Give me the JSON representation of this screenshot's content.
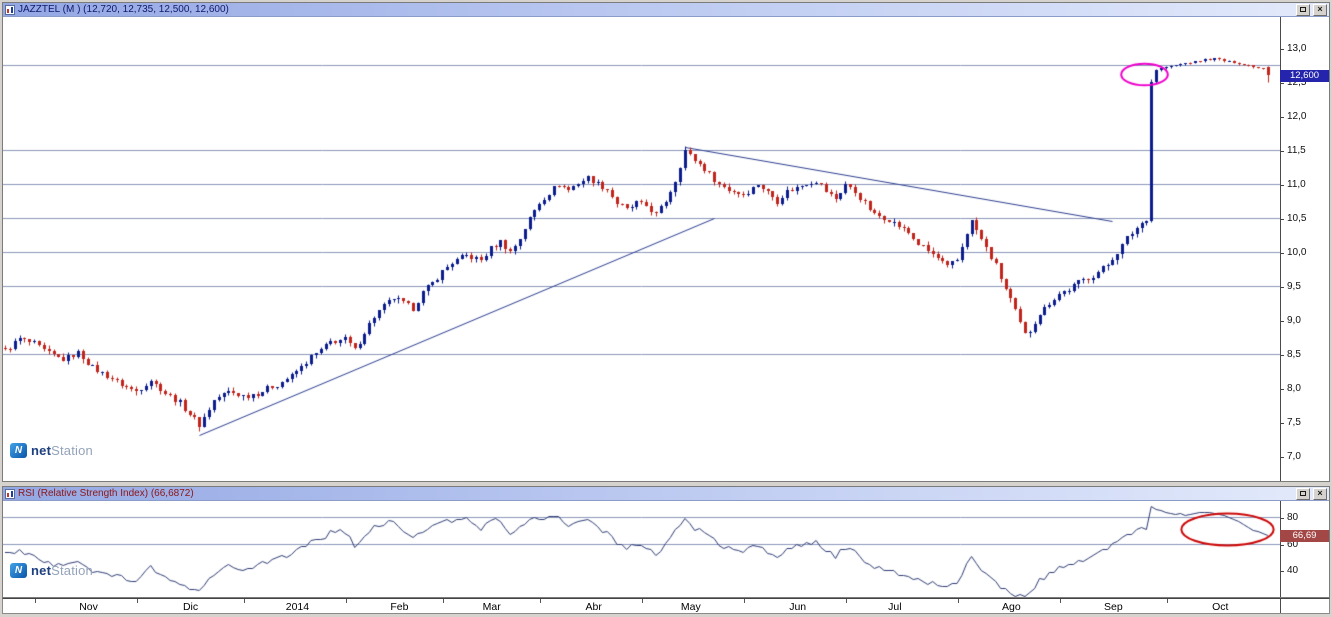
{
  "branding": {
    "icon_letter": "N",
    "net": "net",
    "station": "Station"
  },
  "window_controls": {
    "close_glyph": "×"
  },
  "price_window": {
    "title": "JAZZTEL (M ) (12,720, 12,735, 12,500, 12,600)",
    "last_price_label": "12,600",
    "axis_ticks": [
      {
        "label": "13,0",
        "value": 13.0
      },
      {
        "label": "12,5",
        "value": 12.5
      },
      {
        "label": "12,0",
        "value": 12.0
      },
      {
        "label": "11,5",
        "value": 11.5
      },
      {
        "label": "11,0",
        "value": 11.0
      },
      {
        "label": "10,5",
        "value": 10.5
      },
      {
        "label": "10,0",
        "value": 10.0
      },
      {
        "label": "9,5",
        "value": 9.5
      },
      {
        "label": "9,0",
        "value": 9.0
      },
      {
        "label": "8,5",
        "value": 8.5
      },
      {
        "label": "8,0",
        "value": 8.0
      },
      {
        "label": "7,5",
        "value": 7.5
      },
      {
        "label": "7,0",
        "value": 7.0
      }
    ]
  },
  "rsi_window": {
    "title": "RSI (Relative Strength Index) (66,6872)",
    "value_label": "66,69",
    "axis_ticks": [
      {
        "label": "80",
        "value": 80
      },
      {
        "label": "60",
        "value": 60
      },
      {
        "label": "40",
        "value": 40
      }
    ]
  },
  "time_axis": {
    "labels": [
      {
        "label": "Nov",
        "day": 17
      },
      {
        "label": "Dic",
        "day": 38
      },
      {
        "label": "2014",
        "day": 60
      },
      {
        "label": "Feb",
        "day": 81
      },
      {
        "label": "Mar",
        "day": 100
      },
      {
        "label": "Abr",
        "day": 121
      },
      {
        "label": "May",
        "day": 141
      },
      {
        "label": "Jun",
        "day": 163
      },
      {
        "label": "Jul",
        "day": 183
      },
      {
        "label": "Ago",
        "day": 207
      },
      {
        "label": "Sep",
        "day": 228
      },
      {
        "label": "Oct",
        "day": 250
      }
    ],
    "tick_days": [
      6,
      27,
      49,
      70,
      90,
      110,
      131,
      152,
      173,
      196,
      217,
      239
    ]
  },
  "chart_data": [
    {
      "type": "candlestick",
      "symbol": "JAZZTEL",
      "period_label": "M",
      "y_ticks": [
        13.0,
        12.5,
        12.0,
        11.5,
        11.0,
        10.5,
        10.0,
        9.5,
        9.0,
        8.5,
        8.0,
        7.5,
        7.0
      ],
      "y_view_range": [
        6.63,
        13.46
      ],
      "gridlines": [
        12.75,
        11.5,
        11.0,
        10.5,
        10.0,
        9.5,
        8.5
      ],
      "spike_day": 236,
      "last_candle": {
        "open": 12.72,
        "high": 12.735,
        "low": 12.5,
        "close": 12.6
      },
      "close_path": [
        [
          0,
          8.55
        ],
        [
          3,
          8.72
        ],
        [
          6,
          8.65
        ],
        [
          9,
          8.5
        ],
        [
          12,
          8.42
        ],
        [
          15,
          8.52
        ],
        [
          18,
          8.3
        ],
        [
          21,
          8.18
        ],
        [
          24,
          8.05
        ],
        [
          27,
          7.95
        ],
        [
          30,
          8.12
        ],
        [
          33,
          7.92
        ],
        [
          36,
          7.78
        ],
        [
          40,
          7.45
        ],
        [
          43,
          7.82
        ],
        [
          46,
          7.95
        ],
        [
          49,
          7.88
        ],
        [
          52,
          7.92
        ],
        [
          56,
          8.05
        ],
        [
          59,
          8.18
        ],
        [
          61,
          8.3
        ],
        [
          63,
          8.45
        ],
        [
          65,
          8.55
        ],
        [
          67,
          8.68
        ],
        [
          70,
          8.72
        ],
        [
          72,
          8.55
        ],
        [
          74,
          8.82
        ],
        [
          76,
          9.05
        ],
        [
          78,
          9.2
        ],
        [
          80,
          9.32
        ],
        [
          82,
          9.25
        ],
        [
          84,
          9.18
        ],
        [
          86,
          9.4
        ],
        [
          88,
          9.55
        ],
        [
          90,
          9.72
        ],
        [
          92,
          9.85
        ],
        [
          95,
          9.95
        ],
        [
          98,
          9.88
        ],
        [
          100,
          10.05
        ],
        [
          102,
          10.15
        ],
        [
          104,
          10.0
        ],
        [
          106,
          10.2
        ],
        [
          108,
          10.5
        ],
        [
          110,
          10.72
        ],
        [
          112,
          10.88
        ],
        [
          114,
          11.0
        ],
        [
          116,
          10.92
        ],
        [
          118,
          11.02
        ],
        [
          120,
          11.1
        ],
        [
          122,
          11.0
        ],
        [
          124,
          10.92
        ],
        [
          126,
          10.72
        ],
        [
          128,
          10.62
        ],
        [
          130,
          10.72
        ],
        [
          132,
          10.68
        ],
        [
          134,
          10.55
        ],
        [
          136,
          10.75
        ],
        [
          138,
          11.05
        ],
        [
          140,
          11.5
        ],
        [
          141,
          11.42
        ],
        [
          143,
          11.3
        ],
        [
          145,
          11.15
        ],
        [
          147,
          11.0
        ],
        [
          149,
          10.92
        ],
        [
          152,
          10.85
        ],
        [
          155,
          11.0
        ],
        [
          157,
          10.88
        ],
        [
          159,
          10.75
        ],
        [
          161,
          10.9
        ],
        [
          163,
          10.95
        ],
        [
          165,
          11.02
        ],
        [
          167,
          11.05
        ],
        [
          169,
          10.9
        ],
        [
          171,
          10.78
        ],
        [
          173,
          11.0
        ],
        [
          175,
          10.88
        ],
        [
          177,
          10.72
        ],
        [
          179,
          10.55
        ],
        [
          182,
          10.48
        ],
        [
          184,
          10.38
        ],
        [
          186,
          10.28
        ],
        [
          188,
          10.12
        ],
        [
          190,
          10.02
        ],
        [
          192,
          9.9
        ],
        [
          194,
          9.78
        ],
        [
          196,
          9.88
        ],
        [
          198,
          10.3
        ],
        [
          199,
          10.45
        ],
        [
          200,
          10.32
        ],
        [
          202,
          10.05
        ],
        [
          204,
          9.8
        ],
        [
          205,
          9.62
        ],
        [
          207,
          9.3
        ],
        [
          209,
          8.95
        ],
        [
          210,
          8.78
        ],
        [
          211,
          8.85
        ],
        [
          213,
          9.1
        ],
        [
          215,
          9.25
        ],
        [
          217,
          9.38
        ],
        [
          219,
          9.45
        ],
        [
          221,
          9.55
        ],
        [
          223,
          9.62
        ],
        [
          225,
          9.7
        ],
        [
          227,
          9.82
        ],
        [
          229,
          10.0
        ],
        [
          231,
          10.2
        ],
        [
          233,
          10.35
        ],
        [
          235,
          10.5
        ],
        [
          236,
          12.5
        ],
        [
          237,
          12.68
        ],
        [
          239,
          12.72
        ],
        [
          241,
          12.75
        ],
        [
          243,
          12.78
        ],
        [
          245,
          12.8
        ],
        [
          247,
          12.83
        ],
        [
          249,
          12.85
        ],
        [
          251,
          12.82
        ],
        [
          253,
          12.79
        ],
        [
          255,
          12.76
        ],
        [
          257,
          12.73
        ],
        [
          259,
          12.7
        ],
        [
          260,
          12.6
        ]
      ],
      "trendlines": [
        {
          "name": "ascending-support",
          "from_day": 40,
          "from_price": 7.3,
          "to_day": 146,
          "to_price": 10.5
        },
        {
          "name": "descending-resistance",
          "from_day": 140,
          "from_price": 11.55,
          "to_day": 228,
          "to_price": 10.45
        }
      ],
      "annotations": [
        {
          "shape": "ellipse",
          "color": "#ee00cc",
          "day": 234.5,
          "price": 12.62,
          "rx_days": 4.8,
          "ry_price": 0.16
        }
      ],
      "colors": {
        "up": "#0b1d8c",
        "down": "#c0251c",
        "grid": "#8b97bb",
        "trendline": "#2b3d8f"
      }
    },
    {
      "type": "line",
      "name": "RSI (Relative Strength Index)",
      "last_value": 66.69,
      "last_value_precise": 66.6872,
      "y_ticks": [
        80,
        60,
        40
      ],
      "y_view_range": [
        20,
        92
      ],
      "gridlines": [
        80,
        60
      ],
      "color": "#2c3a72",
      "grid_color": "#8b97bb",
      "points": [
        [
          0,
          52
        ],
        [
          3,
          56
        ],
        [
          6,
          50
        ],
        [
          9,
          45
        ],
        [
          12,
          43
        ],
        [
          15,
          48
        ],
        [
          18,
          41
        ],
        [
          21,
          38
        ],
        [
          24,
          35
        ],
        [
          27,
          33
        ],
        [
          30,
          42
        ],
        [
          33,
          36
        ],
        [
          36,
          31
        ],
        [
          40,
          23
        ],
        [
          43,
          38
        ],
        [
          46,
          45
        ],
        [
          49,
          42
        ],
        [
          52,
          44
        ],
        [
          56,
          49
        ],
        [
          59,
          53
        ],
        [
          61,
          57
        ],
        [
          63,
          61
        ],
        [
          65,
          64
        ],
        [
          67,
          68
        ],
        [
          70,
          70
        ],
        [
          72,
          58
        ],
        [
          74,
          66
        ],
        [
          76,
          72
        ],
        [
          78,
          75
        ],
        [
          80,
          77
        ],
        [
          82,
          70
        ],
        [
          84,
          65
        ],
        [
          86,
          70
        ],
        [
          88,
          73
        ],
        [
          90,
          76
        ],
        [
          92,
          78
        ],
        [
          95,
          79
        ],
        [
          98,
          72
        ],
        [
          100,
          76
        ],
        [
          102,
          78
        ],
        [
          104,
          66
        ],
        [
          106,
          72
        ],
        [
          108,
          77
        ],
        [
          110,
          79
        ],
        [
          112,
          80
        ],
        [
          114,
          81
        ],
        [
          116,
          73
        ],
        [
          118,
          76
        ],
        [
          120,
          78
        ],
        [
          122,
          72
        ],
        [
          124,
          68
        ],
        [
          126,
          61
        ],
        [
          128,
          57
        ],
        [
          130,
          60
        ],
        [
          132,
          58
        ],
        [
          134,
          53
        ],
        [
          136,
          60
        ],
        [
          138,
          70
        ],
        [
          140,
          78
        ],
        [
          141,
          75
        ],
        [
          143,
          70
        ],
        [
          145,
          65
        ],
        [
          147,
          60
        ],
        [
          149,
          57
        ],
        [
          152,
          54
        ],
        [
          155,
          60
        ],
        [
          157,
          55
        ],
        [
          159,
          50
        ],
        [
          161,
          56
        ],
        [
          163,
          58
        ],
        [
          165,
          60
        ],
        [
          167,
          62
        ],
        [
          169,
          56
        ],
        [
          171,
          51
        ],
        [
          173,
          58
        ],
        [
          175,
          54
        ],
        [
          177,
          48
        ],
        [
          179,
          43
        ],
        [
          182,
          41
        ],
        [
          184,
          38
        ],
        [
          186,
          36
        ],
        [
          188,
          33
        ],
        [
          190,
          31
        ],
        [
          192,
          29
        ],
        [
          194,
          27
        ],
        [
          196,
          31
        ],
        [
          198,
          45
        ],
        [
          199,
          50
        ],
        [
          200,
          46
        ],
        [
          202,
          38
        ],
        [
          204,
          32
        ],
        [
          205,
          28
        ],
        [
          207,
          24
        ],
        [
          209,
          21
        ],
        [
          210,
          20
        ],
        [
          211,
          24
        ],
        [
          213,
          32
        ],
        [
          215,
          37
        ],
        [
          217,
          41
        ],
        [
          219,
          44
        ],
        [
          221,
          47
        ],
        [
          223,
          50
        ],
        [
          225,
          53
        ],
        [
          227,
          57
        ],
        [
          229,
          62
        ],
        [
          231,
          66
        ],
        [
          233,
          70
        ],
        [
          235,
          73
        ],
        [
          236,
          88
        ],
        [
          237,
          86
        ],
        [
          239,
          84
        ],
        [
          241,
          83
        ],
        [
          243,
          82
        ],
        [
          245,
          83
        ],
        [
          247,
          84
        ],
        [
          249,
          83
        ],
        [
          251,
          81
        ],
        [
          253,
          79
        ],
        [
          255,
          75
        ],
        [
          257,
          71
        ],
        [
          259,
          68
        ],
        [
          260,
          66.69
        ]
      ],
      "annotations": [
        {
          "shape": "ellipse",
          "color": "#cc0707",
          "day": 251.5,
          "value": 71,
          "rx_days": 9.5,
          "ry_value": 12
        }
      ]
    }
  ]
}
